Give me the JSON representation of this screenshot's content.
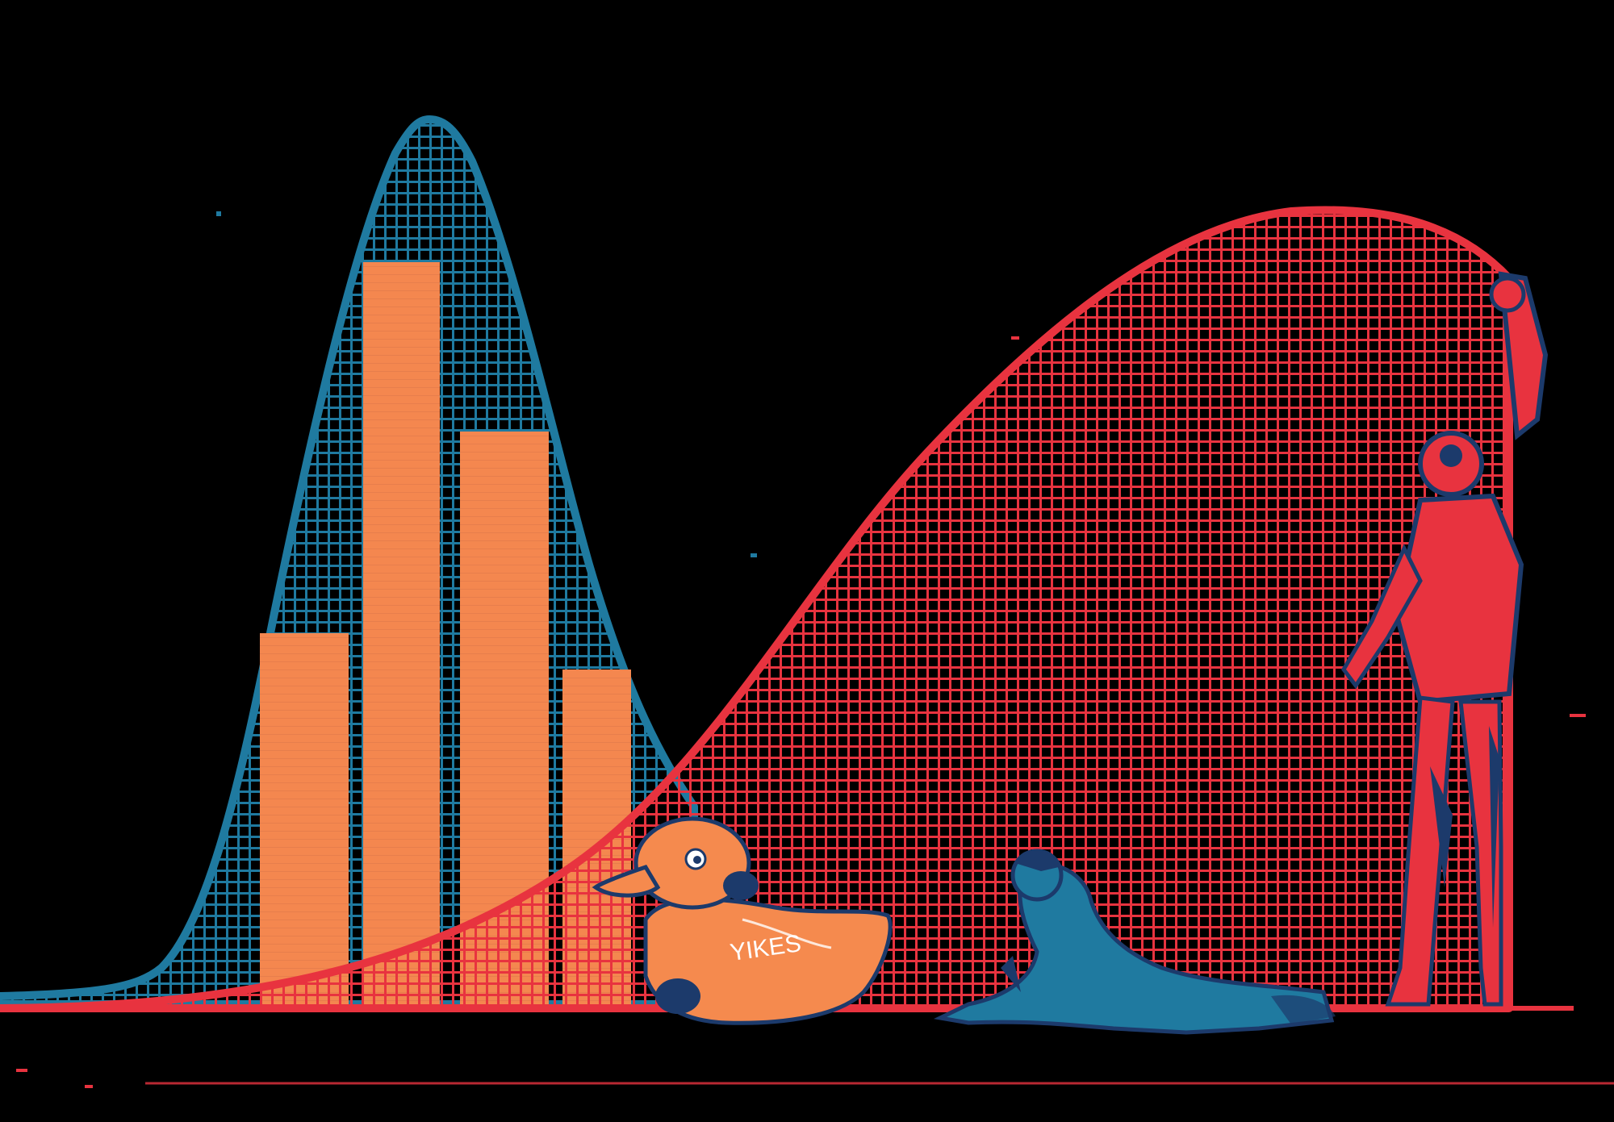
{
  "illustration": {
    "background_color": "#000000",
    "colors": {
      "blue_curve": "#1f7aa0",
      "red_curve": "#e8333f",
      "orange_bars": "#f4874f",
      "navy": "#1c3a6b",
      "duck_orange": "#f58a4e"
    },
    "elements": [
      "blue-bell-curve",
      "red-bell-curve",
      "orange-histogram-bars",
      "rubber-duck",
      "crouching-person",
      "standing-person-reaching-up"
    ],
    "duck_lettering": "YIKES"
  }
}
